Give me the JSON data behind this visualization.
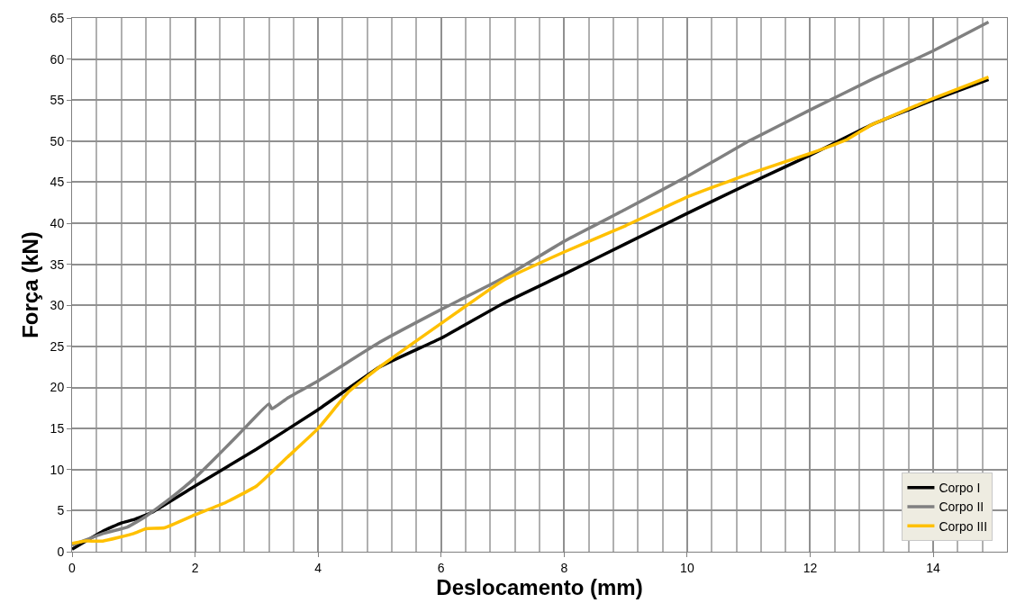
{
  "chart_data": {
    "type": "line",
    "xlabel": "Deslocamento (mm)",
    "ylabel": "Força (kN)",
    "xlim": [
      0,
      15.2
    ],
    "xticks": [
      0,
      2,
      4,
      6,
      8,
      10,
      12,
      14
    ],
    "ylim": [
      0,
      65
    ],
    "yticks": [
      0,
      5,
      10,
      15,
      20,
      25,
      30,
      35,
      40,
      45,
      50,
      55,
      60,
      65
    ],
    "grid": true,
    "legend": "bottom right",
    "marker": "none",
    "line_style": "solid",
    "series": [
      {
        "name": "Corpo I",
        "color": "#000000",
        "x": [
          0,
          0.5,
          0.8,
          1.0,
          1.3,
          2,
          3,
          4,
          5,
          6,
          7,
          8,
          9,
          10,
          11,
          12,
          13,
          14,
          14.9
        ],
        "values": [
          0.3,
          2.5,
          3.5,
          3.9,
          4.8,
          8,
          12.5,
          17.3,
          22.5,
          26,
          30.2,
          33.8,
          37.5,
          41.2,
          44.8,
          48.3,
          52,
          55,
          57.5
        ]
      },
      {
        "name": "Corpo II",
        "color": "#808080",
        "x": [
          0,
          0.5,
          0.9,
          1.2,
          1.6,
          2,
          2.5,
          2.8,
          3.2,
          3.25,
          3.5,
          4,
          5,
          6,
          7,
          8,
          9,
          10,
          11,
          12,
          13,
          14,
          14.9
        ],
        "values": [
          0.8,
          2.2,
          3.0,
          4.3,
          6.5,
          9,
          12.7,
          15,
          18,
          17.4,
          18.7,
          20.8,
          25.5,
          29.5,
          33.3,
          37.8,
          41.7,
          45.7,
          50,
          53.8,
          57.5,
          61,
          64.5
        ]
      },
      {
        "name": "Corpo III",
        "color": "#ffc000",
        "x": [
          0,
          0.2,
          0.5,
          1,
          1.2,
          1.5,
          2,
          2.5,
          3,
          3.5,
          4,
          4.5,
          5,
          6,
          7,
          8,
          9,
          10,
          11,
          12,
          12.6,
          13,
          14,
          14.9
        ],
        "values": [
          1,
          1.3,
          1.3,
          2.2,
          2.8,
          2.9,
          4.5,
          6,
          8,
          11.5,
          15,
          19.5,
          22.5,
          27.8,
          33,
          36.5,
          39.7,
          43.2,
          46,
          48.5,
          50.2,
          52,
          55.2,
          57.8
        ]
      }
    ]
  }
}
